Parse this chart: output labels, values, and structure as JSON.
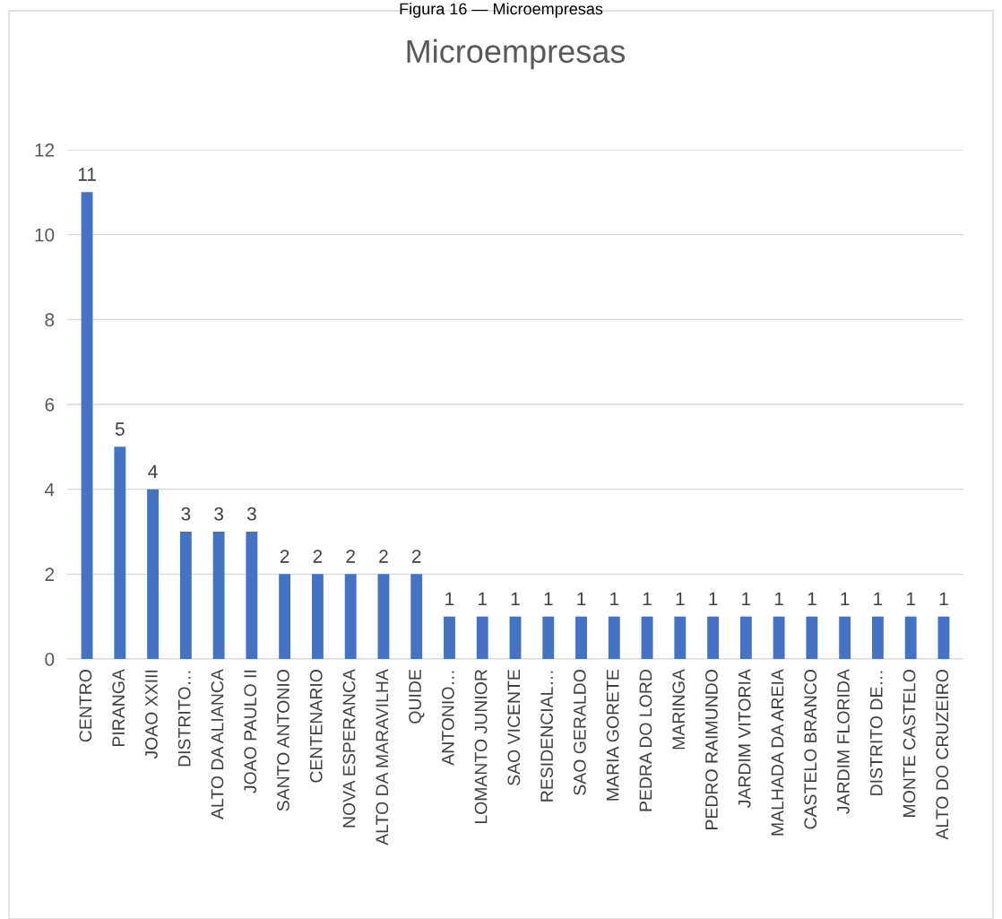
{
  "chart_data": {
    "type": "bar",
    "title": "Microempresas",
    "annotations": [
      "Figura 16 — Microempresas"
    ],
    "categories": [
      "CENTRO",
      "PIRANGA",
      "JOAO XXIII",
      "DISTRITO…",
      "ALTO DA ALIANCA",
      "JOAO PAULO II",
      "SANTO ANTONIO",
      "CENTENARIO",
      "NOVA ESPERANCA",
      "ALTO DA MARAVILHA",
      "QUIDE",
      "ANTONIO…",
      "LOMANTO JUNIOR",
      "SAO VICENTE",
      "RESIDENCIAL…",
      "SAO GERALDO",
      "MARIA GORETE",
      "PEDRA DO LORD",
      "MARINGA",
      "PEDRO RAIMUNDO",
      "JARDIM VITORIA",
      "MALHADA DA AREIA",
      "CASTELO BRANCO",
      "JARDIM FLORIDA",
      "DISTRITO DE…",
      "MONTE CASTELO",
      "ALTO DO CRUZEIRO"
    ],
    "values": [
      11,
      5,
      4,
      3,
      3,
      3,
      2,
      2,
      2,
      2,
      2,
      1,
      1,
      1,
      1,
      1,
      1,
      1,
      1,
      1,
      1,
      1,
      1,
      1,
      1,
      1,
      1
    ],
    "color": "#4472c4",
    "ylim": [
      0,
      12
    ],
    "yticks": [
      0,
      2,
      4,
      6,
      8,
      10,
      12
    ],
    "grid": "y",
    "data_labels": true
  }
}
